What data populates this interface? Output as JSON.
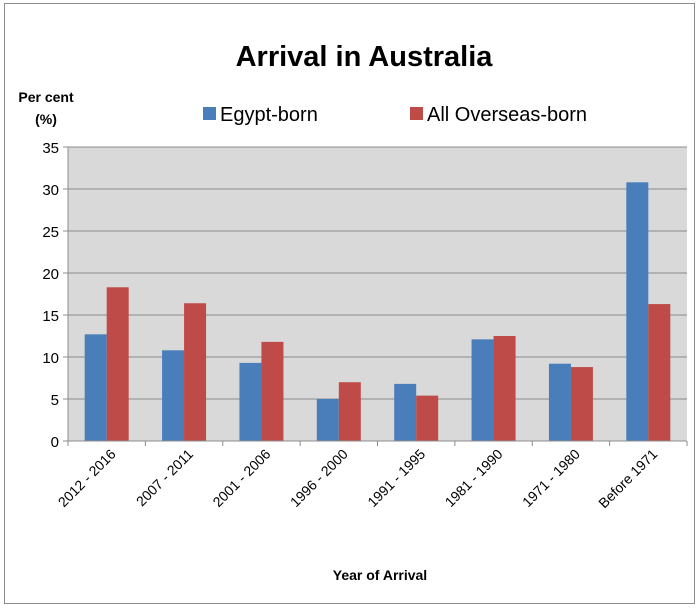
{
  "chart_data": {
    "type": "bar",
    "title": "Arrival in Australia",
    "ylabel_line1": "Per cent",
    "ylabel_line2": "(%)",
    "xlabel": "Year of Arrival",
    "ylim": [
      0,
      35
    ],
    "yticks": [
      0,
      5,
      10,
      15,
      20,
      25,
      30,
      35
    ],
    "grid": true,
    "legend_position": "top",
    "categories": [
      "2012 - 2016",
      "2007 - 2011",
      "2001 - 2006",
      "1996 - 2000",
      "1991 - 1995",
      "1981 - 1990",
      "1971 - 1980",
      "Before 1971"
    ],
    "series": [
      {
        "name": "Egypt-born",
        "color": "#4a7ebb",
        "values": [
          12.7,
          10.8,
          9.3,
          5.0,
          6.8,
          12.1,
          9.2,
          30.8
        ]
      },
      {
        "name": "All Overseas-born",
        "color": "#be4b48",
        "values": [
          18.3,
          16.4,
          11.8,
          7.0,
          5.4,
          12.5,
          8.8,
          16.3
        ]
      }
    ]
  }
}
